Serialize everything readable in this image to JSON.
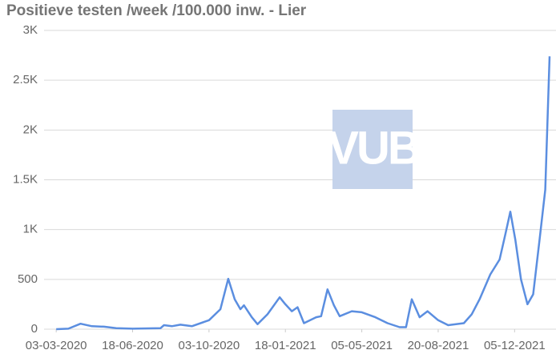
{
  "chart_data": {
    "type": "line",
    "title": "Positieve testen /week /100.000 inw. - Lier",
    "watermark": "VUB",
    "color": "#5b8ee0",
    "grid": true,
    "x": [
      "03-03-2020",
      "20-03-2020",
      "06-04-2020",
      "22-04-2020",
      "09-05-2020",
      "26-05-2020",
      "18-06-2020",
      "27-07-2020",
      "01-08-2020",
      "12-08-2020",
      "24-08-2020",
      "09-09-2020",
      "03-10-2020",
      "19-10-2020",
      "30-10-2020",
      "08-11-2020",
      "16-11-2020",
      "21-11-2020",
      "02-12-2020",
      "10-12-2020",
      "24-12-2020",
      "10-01-2021",
      "18-01-2021",
      "27-01-2021",
      "04-02-2021",
      "13-02-2021",
      "02-03-2021",
      "09-03-2021",
      "18-03-2021",
      "27-03-2021",
      "04-04-2021",
      "21-04-2021",
      "05-05-2021",
      "24-05-2021",
      "10-06-2021",
      "27-06-2021",
      "06-07-2021",
      "14-07-2021",
      "25-07-2021",
      "05-08-2021",
      "20-08-2021",
      "03-09-2021",
      "14-09-2021",
      "25-09-2021",
      "06-10-2021",
      "17-10-2021",
      "01-11-2021",
      "14-11-2021",
      "22-11-2021",
      "29-11-2021",
      "06-12-2021",
      "14-12-2021",
      "23-12-2021",
      "31-12-2021",
      "09-01-2022",
      "17-01-2022",
      "23-01-2022"
    ],
    "values": [
      0,
      5,
      55,
      30,
      25,
      10,
      5,
      10,
      40,
      30,
      45,
      30,
      90,
      200,
      506,
      300,
      200,
      240,
      120,
      50,
      150,
      320,
      250,
      180,
      220,
      60,
      120,
      130,
      400,
      240,
      130,
      180,
      170,
      120,
      60,
      20,
      20,
      300,
      120,
      180,
      90,
      40,
      50,
      60,
      150,
      300,
      550,
      700,
      950,
      1180,
      900,
      500,
      250,
      350,
      900,
      1400,
      2740
    ],
    "xlim": [
      "15-02-2020",
      "01-02-2022"
    ],
    "xticks": [
      "03-03-2020",
      "18-06-2020",
      "03-10-2020",
      "18-01-2021",
      "05-05-2021",
      "20-08-2021",
      "05-12-2021"
    ],
    "ylim": [
      0,
      3000
    ],
    "yticks": [
      0,
      500,
      {
        "value": 1000,
        "label": "1K"
      },
      {
        "value": 1500,
        "label": "1.5K"
      },
      {
        "value": 2000,
        "label": "2K"
      },
      {
        "value": 2500,
        "label": "2.5K"
      },
      {
        "value": 3000,
        "label": "3K"
      }
    ]
  }
}
